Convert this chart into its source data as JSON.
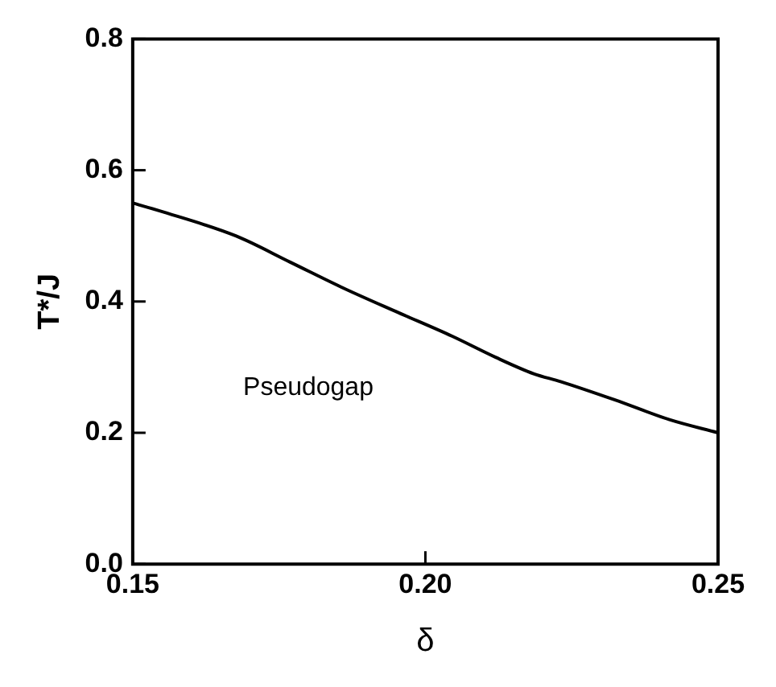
{
  "chart_data": {
    "type": "line",
    "xlabel": "δ",
    "ylabel": "T*/J",
    "annotations": [
      "Pseudogap"
    ],
    "x": [
      0.15,
      0.1546,
      0.1676,
      0.1769,
      0.1861,
      0.1954,
      0.2046,
      0.212,
      0.2185,
      0.2231,
      0.2324,
      0.2417,
      0.25
    ],
    "series": [
      {
        "color": "#000000",
        "values": [
          0.55,
          0.538,
          0.5,
          0.46,
          0.42,
          0.383,
          0.347,
          0.315,
          0.29,
          0.278,
          0.25,
          0.22,
          0.2
        ]
      }
    ],
    "xlim": [
      0.15,
      0.25
    ],
    "xticks": [
      0.15,
      {
        "value": 0.2,
        "label": "0.20"
      },
      0.25
    ],
    "ylim": [
      0,
      0.8
    ],
    "yticks": [
      {
        "value": 0,
        "label": "0.0"
      },
      {
        "value": 0.2,
        "label": "0.2"
      },
      {
        "value": 0.4,
        "label": "0.4"
      },
      {
        "value": 0.6,
        "label": "0.6"
      },
      {
        "value": 0.8,
        "label": "0.8"
      }
    ],
    "grid": false,
    "legend": false,
    "marker": "none",
    "line_style": "solid"
  }
}
